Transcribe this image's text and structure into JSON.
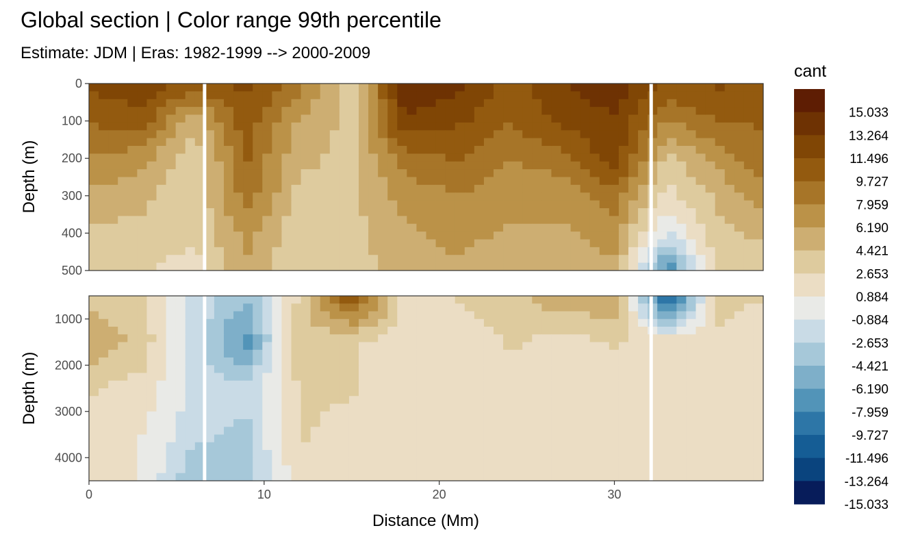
{
  "chart_data": {
    "type": "heatmap",
    "title": "Global section | Color range 99th percentile",
    "subtitle": "Estimate: JDM  | Eras: 1982-1999 --> 2000-2009",
    "xlabel": "Distance (Mm)",
    "ylabel": "Depth (m)",
    "legend_title": "cant",
    "legend_placement": "right",
    "grid": true,
    "xlim": [
      0,
      38.5
    ],
    "x_ticks": [
      "0",
      "10",
      "20",
      "30"
    ],
    "panels": [
      {
        "name": "upper",
        "ylim": [
          500,
          0
        ],
        "y_ticks": [
          "0",
          "100",
          "200",
          "300",
          "400",
          "500"
        ]
      },
      {
        "name": "lower",
        "ylim": [
          4500,
          500
        ],
        "y_ticks": [
          "1000",
          "2000",
          "3000",
          "4000"
        ]
      }
    ],
    "color_levels": [
      "15.033",
      "13.264",
      "11.496",
      "9.727",
      "7.959",
      "6.190",
      "4.421",
      "2.653",
      "0.884",
      "-0.884",
      "-2.653",
      "-4.421",
      "-6.190",
      "-7.959",
      "-9.727",
      "-11.496",
      "-13.264",
      "-15.033"
    ],
    "color_scale": [
      "#5e1d03",
      "#6e3203",
      "#804605",
      "#935a0f",
      "#a77528",
      "#bb9248",
      "#cdae72",
      "#decb9e",
      "#ebddc4",
      "#e9eae7",
      "#c9dbe6",
      "#a6c8d9",
      "#7eafc9",
      "#5294b8",
      "#2d76a7",
      "#155d95",
      "#0a447e",
      "#071c5a"
    ],
    "gaps_x": [
      6.6,
      32.1
    ],
    "series": [
      {
        "name": "upper",
        "x": [
          0,
          3,
          6,
          9,
          12,
          15,
          18,
          21,
          24,
          27,
          30,
          33,
          36,
          38
        ],
        "depth": [
          0,
          100,
          200,
          300,
          400,
          500
        ],
        "values": [
          [
            11,
            12,
            10,
            11,
            8,
            2,
            14,
            13,
            10,
            12,
            14,
            10,
            11,
            10
          ],
          [
            9,
            10,
            4,
            10,
            5,
            3,
            12,
            11,
            9,
            11,
            12,
            7,
            9,
            9
          ],
          [
            7,
            6,
            2,
            9,
            4,
            3,
            8,
            9,
            7,
            8,
            12,
            3,
            6,
            8
          ],
          [
            5,
            4,
            2,
            8,
            3,
            3,
            6,
            7,
            6,
            6,
            8,
            1,
            4,
            6
          ],
          [
            3,
            3,
            2,
            6,
            2,
            3,
            5,
            6,
            5,
            5,
            6,
            -2,
            3,
            4
          ],
          [
            2,
            2,
            1,
            5,
            2,
            3,
            4,
            5,
            4,
            4,
            5,
            -9,
            3,
            2
          ]
        ]
      },
      {
        "name": "lower",
        "x": [
          0,
          3,
          6,
          9,
          12,
          15,
          18,
          21,
          24,
          27,
          30,
          33,
          36,
          38
        ],
        "depth": [
          500,
          1500,
          2500,
          3500,
          4500
        ],
        "values": [
          [
            3,
            2,
            -2,
            -5,
            2,
            11,
            1,
            2,
            3,
            5,
            5,
            -12,
            3,
            2
          ],
          [
            5,
            3,
            -3,
            -8,
            3,
            2,
            1,
            0,
            2,
            1,
            2,
            1,
            1,
            0
          ],
          [
            2,
            1,
            -2,
            -3,
            2,
            2,
            0,
            0,
            1,
            1,
            1,
            1,
            1,
            0
          ],
          [
            1,
            0,
            -3,
            -4,
            2,
            1,
            0,
            0,
            1,
            1,
            1,
            1,
            1,
            0
          ],
          [
            0,
            0,
            -5,
            -4,
            1,
            0,
            0,
            0,
            1,
            1,
            1,
            1,
            1,
            0
          ]
        ]
      }
    ]
  }
}
